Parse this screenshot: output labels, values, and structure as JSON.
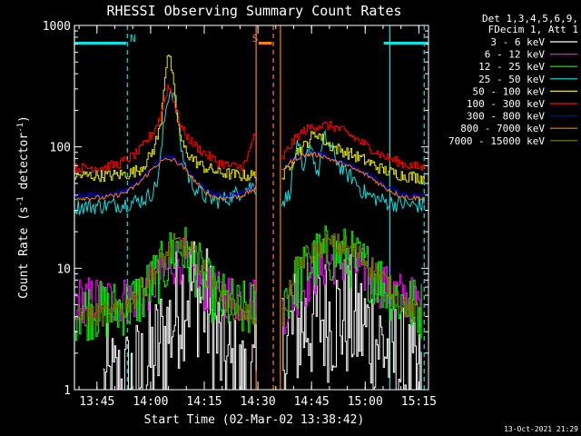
{
  "chart_data": {
    "type": "line",
    "title": "RHESSI Observing Summary Count Rates",
    "xlabel": "Start Time (02-Mar-02 13:38:42)",
    "ylabel": "Count Rate (s⁻¹ detector⁻¹)",
    "ylabel_parts": [
      "Count Rate (s",
      "-1",
      " detector",
      "-1",
      ")"
    ],
    "y_scale": "log",
    "ylim": [
      1,
      1000
    ],
    "y_ticks": [
      1,
      10,
      100,
      1000
    ],
    "y_tick_labels": [
      "1",
      "10",
      "100",
      "1000"
    ],
    "x_unit": "minutes since 13:38:42",
    "xlim": [
      0,
      99
    ],
    "x_ticks": [
      6.3,
      21.3,
      36.3,
      51.3,
      66.3,
      81.3,
      96.3
    ],
    "x_tick_labels": [
      "13:45",
      "14:00",
      "14:15",
      "14:30",
      "14:45",
      "15:00",
      "15:15"
    ],
    "legend_placement": "outside right",
    "legend_header": [
      "Det 1,3,4,5,6,9,",
      "FDecim 1, Att 1"
    ],
    "footer_date": "13-Oct-2021 21:29",
    "annotations": [
      {
        "text": "N",
        "x": 15.5,
        "color": "#00e5e5"
      },
      {
        "text": "S",
        "x": 49.7,
        "color": "#ff8000"
      }
    ],
    "night_bars": [
      {
        "x0": 0,
        "x1": 14.5,
        "color": "#00e5e5"
      },
      {
        "x0": 86.5,
        "x1": 99,
        "color": "#00e5e5"
      },
      {
        "x0": 51.5,
        "x1": 55.2,
        "color": "#ff8000"
      }
    ],
    "vlines": [
      {
        "x": 0,
        "color": "#00e5e5",
        "dashed": false
      },
      {
        "x": 14.8,
        "color": "#00e5e5",
        "dashed": true
      },
      {
        "x": 50.8,
        "color": "#ff8000",
        "dashed": false
      },
      {
        "x": 55.6,
        "color": "#ff8000",
        "dashed": true
      },
      {
        "x": 57.6,
        "color": "#ff8000",
        "dashed": false
      },
      {
        "x": 88.2,
        "color": "#00e5e5",
        "dashed": false
      },
      {
        "x": 97.8,
        "color": "#00e5e5",
        "dashed": true
      }
    ],
    "gaps": [
      [
        50.8,
        58.0
      ]
    ],
    "series": [
      {
        "name": "3 - 6 keV",
        "color": "#ffffff",
        "style": "step",
        "noise": 0.55,
        "x": [
          8,
          13,
          18,
          22,
          25,
          27,
          29,
          31,
          33,
          35,
          37,
          39,
          41,
          43,
          45,
          47,
          49.5,
          59,
          61,
          64,
          67,
          70,
          73,
          76,
          79,
          82,
          85,
          88,
          91,
          94,
          97
        ],
        "y": [
          1,
          1,
          1.2,
          1.8,
          2.6,
          3.5,
          5,
          6.5,
          7,
          6,
          4.5,
          3,
          2,
          1.5,
          1.2,
          1,
          1,
          2.5,
          3,
          3.5,
          3.8,
          4,
          4,
          4,
          3.5,
          3,
          2.5,
          2,
          1.5,
          1.2,
          1
        ]
      },
      {
        "name": "6 - 12 keV",
        "color": "#ff00ff",
        "style": "step",
        "noise": 0.2,
        "x": [
          0,
          10,
          15,
          19,
          22,
          25,
          27,
          29,
          31,
          33,
          35,
          37,
          40,
          43,
          46,
          49.5,
          59,
          61,
          64,
          67,
          70,
          73,
          76,
          79,
          82,
          85,
          88,
          91,
          94,
          97
        ],
        "y": [
          5.5,
          5.5,
          5.5,
          6,
          7.5,
          9,
          11,
          12,
          11,
          9,
          7.5,
          6.5,
          6,
          6,
          5.5,
          5.5,
          4.5,
          6,
          7,
          9,
          11,
          11.5,
          11,
          10,
          9,
          7.5,
          6.5,
          6,
          5.5,
          5
        ]
      },
      {
        "name": "12 - 25 keV",
        "color": "#00ff00",
        "style": "step",
        "noise": 0.25,
        "x": [
          0,
          10,
          15,
          19,
          22,
          25,
          27,
          29,
          31,
          33,
          35,
          37,
          40,
          43,
          46,
          49.5,
          59,
          61,
          64,
          67,
          70,
          73,
          76,
          79,
          82,
          85,
          88,
          91,
          94,
          97
        ],
        "y": [
          4.5,
          4.5,
          5,
          6,
          8,
          10,
          13,
          15,
          13,
          11,
          9,
          7,
          5.5,
          5,
          4.5,
          4.5,
          6,
          7,
          9,
          11.5,
          13,
          13,
          12.5,
          11,
          9.5,
          8,
          6.5,
          5.5,
          5,
          4.5
        ]
      },
      {
        "name": "25 - 50 keV",
        "color": "#00e5e5",
        "style": "line",
        "noise": 0.07,
        "x": [
          0,
          10,
          14,
          16,
          18,
          20,
          21,
          22,
          23,
          24,
          25,
          26,
          27,
          28,
          29,
          30,
          32,
          34,
          36,
          38,
          40,
          43,
          46,
          49.5,
          58,
          60,
          61,
          62,
          63,
          64,
          65,
          66,
          67,
          68,
          69,
          70,
          72,
          74,
          76,
          78,
          80,
          82,
          84,
          86,
          88,
          90,
          92,
          94,
          96,
          97.8
        ],
        "y": [
          32,
          33,
          34,
          35,
          36,
          38,
          40,
          43,
          50,
          75,
          150,
          250,
          300,
          250,
          160,
          90,
          55,
          45,
          40,
          37,
          36,
          38,
          42,
          48,
          35,
          40,
          60,
          100,
          90,
          55,
          85,
          110,
          80,
          55,
          90,
          120,
          95,
          70,
          60,
          55,
          45,
          40,
          38,
          36,
          35,
          34,
          34,
          33,
          33,
          33
        ]
      },
      {
        "name": "50 - 100 keV",
        "color": "#e5e500",
        "style": "step",
        "noise": 0.05,
        "x": [
          0,
          10,
          15,
          18,
          20,
          22,
          24,
          25,
          26,
          27,
          28,
          29,
          30,
          32,
          34,
          36,
          38,
          40,
          43,
          46,
          49.5,
          58,
          60,
          62,
          64,
          66,
          68,
          70,
          72,
          74,
          76,
          78,
          80,
          82,
          84,
          86,
          88,
          90,
          92,
          94,
          96,
          97.8
        ],
        "y": [
          58,
          58,
          60,
          65,
          75,
          95,
          150,
          350,
          600,
          450,
          250,
          150,
          105,
          85,
          75,
          68,
          65,
          62,
          60,
          58,
          58,
          55,
          70,
          90,
          100,
          120,
          130,
          110,
          100,
          95,
          90,
          85,
          80,
          75,
          70,
          65,
          62,
          60,
          58,
          57,
          56,
          55
        ]
      },
      {
        "name": "100 - 300 keV",
        "color": "#ff0000",
        "style": "step",
        "noise": 0.04,
        "x": [
          0,
          8,
          12,
          15,
          18,
          20,
          22,
          24,
          25,
          26,
          27,
          28,
          29,
          30,
          32,
          34,
          36,
          38,
          40,
          43,
          46,
          48,
          49.8,
          58,
          60,
          62,
          64,
          66,
          68,
          70,
          72,
          74,
          76,
          78,
          80,
          82,
          84,
          86,
          88,
          90,
          92,
          94,
          96,
          97.8
        ],
        "y": [
          67,
          68,
          72,
          80,
          92,
          110,
          135,
          180,
          240,
          320,
          280,
          220,
          170,
          140,
          115,
          100,
          90,
          82,
          75,
          70,
          68,
          75,
          120,
          80,
          100,
          120,
          135,
          145,
          150,
          150,
          148,
          140,
          130,
          120,
          110,
          100,
          92,
          85,
          80,
          76,
          72,
          70,
          68,
          67
        ]
      },
      {
        "name": "300 - 800 keV",
        "color": "#0000ff",
        "style": "line",
        "noise": 0.02,
        "x": [
          0,
          8,
          12,
          15,
          18,
          20,
          22,
          24,
          26,
          28,
          30,
          32,
          34,
          36,
          38,
          40,
          43,
          46,
          48,
          49.8,
          58,
          60,
          62,
          64,
          66,
          68,
          70,
          72,
          74,
          76,
          78,
          80,
          82,
          84,
          86,
          88,
          90,
          92,
          94,
          96,
          97.8
        ],
        "y": [
          40,
          40,
          42,
          45,
          52,
          60,
          70,
          78,
          82,
          80,
          72,
          62,
          53,
          46,
          42,
          40,
          40,
          41,
          43,
          46,
          65,
          75,
          82,
          87,
          89,
          88,
          85,
          80,
          76,
          72,
          68,
          64,
          60,
          55,
          50,
          46,
          43,
          41,
          40,
          40,
          40
        ]
      },
      {
        "name": "800 - 7000 keV",
        "color": "#ff8000",
        "style": "line",
        "noise": 0.02,
        "x": [
          0,
          8,
          12,
          15,
          18,
          20,
          22,
          24,
          26,
          28,
          30,
          32,
          34,
          36,
          38,
          40,
          43,
          46,
          48,
          49.8,
          58,
          60,
          62,
          64,
          66,
          68,
          70,
          72,
          74,
          76,
          78,
          80,
          82,
          84,
          86,
          88,
          90,
          92,
          94,
          96,
          97.8
        ],
        "y": [
          38,
          38,
          40,
          43,
          50,
          58,
          67,
          75,
          79,
          77,
          70,
          60,
          51,
          44,
          40,
          38,
          38,
          39,
          41,
          44,
          63,
          73,
          80,
          85,
          87,
          86,
          83,
          78,
          74,
          70,
          66,
          62,
          58,
          53,
          48,
          44,
          41,
          39,
          38,
          38,
          38
        ]
      },
      {
        "name": "7000 - 15000 keV",
        "color": "#808000",
        "style": "step",
        "noise": 0.1,
        "x": [
          0,
          10,
          15,
          19,
          22,
          25,
          27,
          29,
          31,
          33,
          35,
          37,
          40,
          43,
          46,
          49.5,
          59,
          61,
          64,
          67,
          70,
          73,
          76,
          79,
          82,
          85,
          88,
          91,
          94,
          97
        ],
        "y": [
          4,
          4.2,
          5,
          7,
          9,
          12,
          15,
          16,
          15,
          13,
          11,
          8.5,
          6.5,
          5,
          4.5,
          4.2,
          4,
          9,
          12,
          14,
          15.5,
          15.5,
          15,
          13,
          11,
          9,
          7,
          5.5,
          4.5,
          4
        ]
      }
    ]
  }
}
